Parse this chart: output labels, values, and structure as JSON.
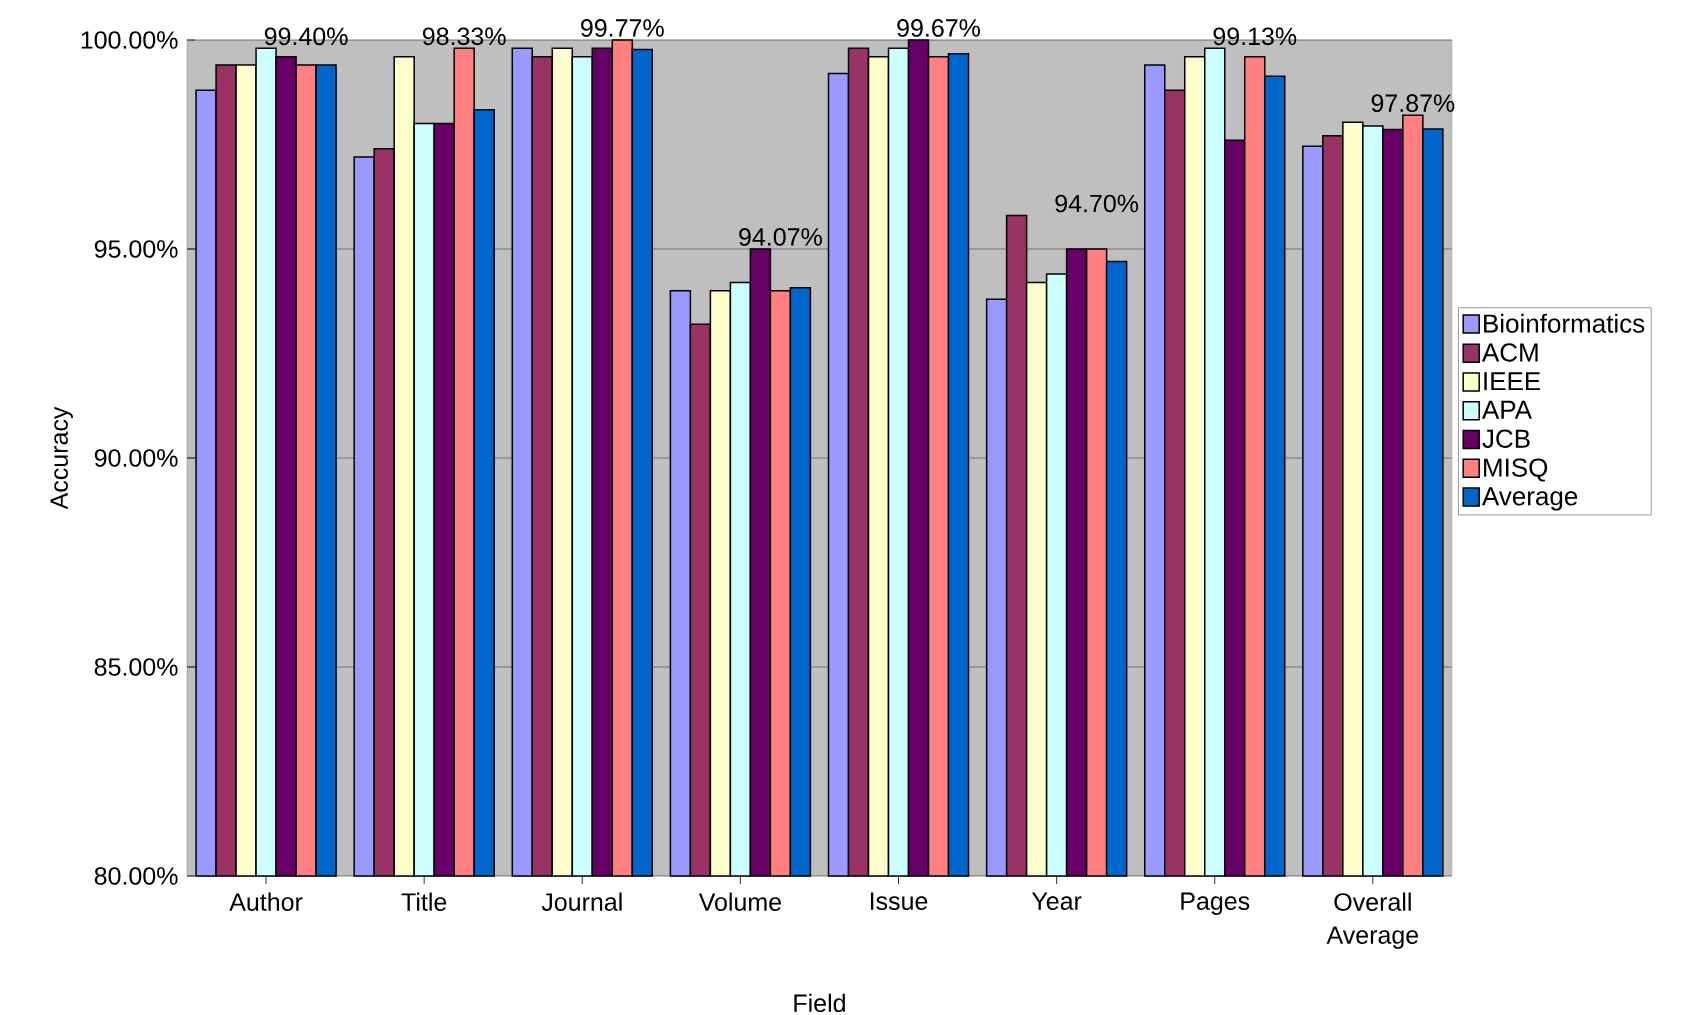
{
  "chart_data": {
    "type": "bar",
    "xlabel": "Field",
    "ylabel": "Accuracy",
    "categories": [
      "Author",
      "Title",
      "Journal",
      "Volume",
      "Issue",
      "Year",
      "Pages",
      "Overall Average"
    ],
    "series": [
      {
        "name": "Bioinformatics",
        "color": "#9999ff",
        "values": [
          98.8,
          97.2,
          99.8,
          94.0,
          99.2,
          93.8,
          99.4,
          97.46
        ]
      },
      {
        "name": "ACM",
        "color": "#993366",
        "values": [
          99.4,
          97.4,
          99.6,
          93.2,
          99.8,
          95.8,
          98.8,
          97.71
        ]
      },
      {
        "name": "IEEE",
        "color": "#ffffcc",
        "values": [
          99.4,
          99.6,
          99.8,
          94.0,
          99.6,
          94.2,
          99.6,
          98.03
        ]
      },
      {
        "name": "APA",
        "color": "#ccffff",
        "values": [
          99.8,
          98.0,
          99.6,
          94.2,
          99.8,
          94.4,
          99.8,
          97.94
        ]
      },
      {
        "name": "JCB",
        "color": "#660066",
        "values": [
          99.6,
          98.0,
          99.8,
          95.0,
          100.0,
          95.0,
          97.6,
          97.86
        ]
      },
      {
        "name": "MISQ",
        "color": "#ff8080",
        "values": [
          99.4,
          99.8,
          100.0,
          94.0,
          99.6,
          95.0,
          99.6,
          98.2
        ]
      },
      {
        "name": "Average",
        "color": "#0066cc",
        "values": [
          99.4,
          98.33,
          99.77,
          94.07,
          99.67,
          94.7,
          99.13,
          97.87
        ],
        "value_labels": [
          "99.40%",
          "98.33%",
          "99.77%",
          "94.07%",
          "99.67%",
          "94.70%",
          "99.13%",
          "97.87%"
        ]
      }
    ],
    "ylim": [
      80,
      100
    ],
    "yticks": [
      {
        "value": 80,
        "label": "80.00%"
      },
      {
        "value": 85,
        "label": "85.00%"
      },
      {
        "value": 90,
        "label": "90.00%"
      },
      {
        "value": 95,
        "label": "95.00%"
      },
      {
        "value": 100,
        "label": "100.00%"
      }
    ],
    "grid": "y",
    "legend": "right"
  }
}
